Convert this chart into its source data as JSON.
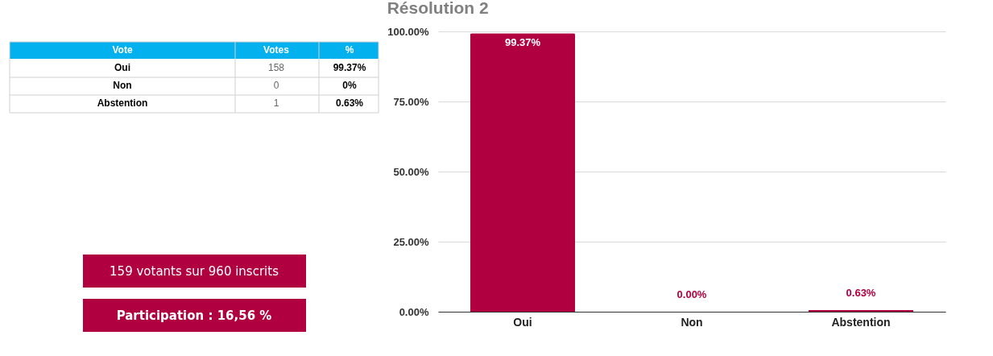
{
  "chart_data": [
    {
      "type": "other",
      "annotations": [
        "Vote",
        "Votes",
        "%",
        "Oui",
        "158",
        "99.37%",
        "Non",
        "0",
        "0%",
        "Abstention",
        "1",
        "0.63%",
        "159 votants sur 960 inscrits",
        "Participation : 16,56 %"
      ]
    },
    {
      "type": "bar",
      "title": "Résolution 2",
      "categories": [
        "Oui",
        "Non",
        "Abstention"
      ],
      "values": [
        99.37,
        0,
        0.63
      ],
      "color": "#b0003f",
      "value_labels": [
        "99.37%",
        "0.00%",
        "0.63%"
      ],
      "ylim": [
        0,
        100
      ],
      "yticks": [
        {
          "value": 0,
          "label": "0.00%"
        },
        {
          "value": 25,
          "label": "25.00%"
        },
        {
          "value": 50,
          "label": "50.00%"
        },
        {
          "value": 75,
          "label": "75.00%"
        },
        {
          "value": 100,
          "label": "100.00%"
        }
      ],
      "grid": "y"
    }
  ]
}
